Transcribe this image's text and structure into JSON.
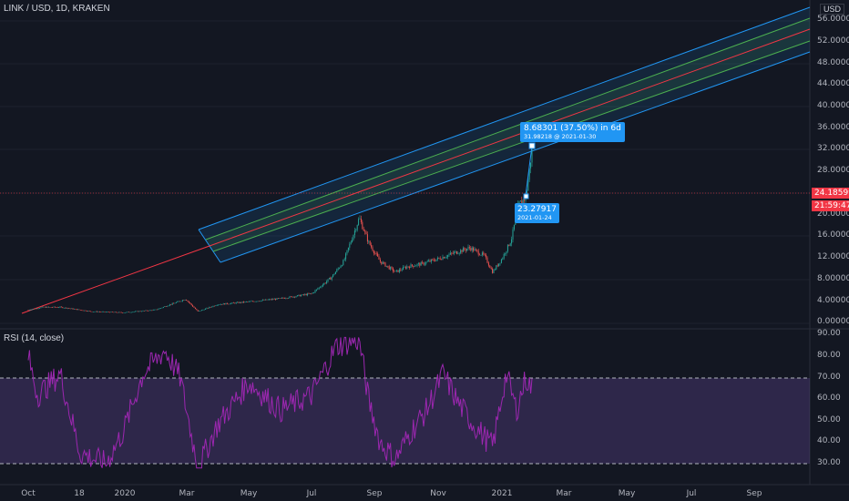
{
  "symbol": "LINK / USD, 1D, KRAKEN",
  "currency": "USD",
  "rsi_label": "RSI (14, close)",
  "colors": {
    "background": "#131722",
    "candle_up": "#26a69a",
    "candle_down": "#ef5350",
    "rsi_line": "#9c27b0",
    "rsi_band": "#7e57c2",
    "channel_outer": "#2196f3",
    "channel_inner": "#4caf50",
    "channel_mid": "#f23645",
    "tooltip": "#2196f3",
    "price_tag": "#f23645"
  },
  "price_axis": [
    "56.00000",
    "52.00000",
    "48.00000",
    "44.00000",
    "40.00000",
    "36.00000",
    "32.00000",
    "28.00000",
    "20.00000",
    "16.00000",
    "12.00000",
    "8.00000",
    "4.00000",
    "0.00000"
  ],
  "rsi_axis": [
    "90.00",
    "80.00",
    "70.00",
    "60.00",
    "50.00",
    "40.00",
    "30.00"
  ],
  "time_axis": [
    "Oct",
    "18",
    "2020",
    "Mar",
    "May",
    "Jul",
    "Sep",
    "Nov",
    "2021",
    "Mar",
    "May",
    "Jul",
    "Sep"
  ],
  "last_price": "24.18599",
  "countdown": "21:59:47",
  "measure_top": {
    "line1": "8.68301 (37.50%) in 6d",
    "line2": "31.98218 @ 2021-01-30"
  },
  "measure_bottom": {
    "line1": "23.27917",
    "line2": "2021-01-24"
  },
  "chart_data": [
    {
      "type": "candlestick",
      "title": "LINK / USD, 1D, KRAKEN",
      "ylabel": "USD",
      "ylim": [
        0,
        56
      ],
      "x": [
        "2019-10-01",
        "2019-10-15",
        "2019-11-01",
        "2019-12-01",
        "2020-01-01",
        "2020-02-01",
        "2020-03-01",
        "2020-03-13",
        "2020-04-01",
        "2020-05-01",
        "2020-06-01",
        "2020-07-01",
        "2020-07-20",
        "2020-08-01",
        "2020-08-16",
        "2020-08-25",
        "2020-09-05",
        "2020-09-20",
        "2020-10-01",
        "2020-10-15",
        "2020-11-01",
        "2020-11-15",
        "2020-12-01",
        "2020-12-15",
        "2020-12-23",
        "2021-01-01",
        "2021-01-10",
        "2021-01-17",
        "2021-01-24",
        "2021-01-30"
      ],
      "close": [
        2.5,
        3.0,
        3.0,
        2.2,
        2.0,
        2.5,
        4.5,
        2.2,
        3.5,
        4.0,
        4.6,
        5.5,
        8.5,
        11.5,
        19.5,
        15.0,
        11.5,
        9.5,
        10.5,
        11.0,
        12.0,
        13.0,
        14.0,
        12.5,
        9.5,
        12.0,
        15.5,
        22.0,
        23.3,
        32.0
      ]
    },
    {
      "type": "line",
      "title": "RSI (14, close)",
      "ylim": [
        27,
        92
      ],
      "x": [
        "2019-10-01",
        "2019-10-10",
        "2019-11-01",
        "2019-11-20",
        "2019-12-15",
        "2020-01-01",
        "2020-01-20",
        "2020-02-10",
        "2020-02-25",
        "2020-03-13",
        "2020-04-01",
        "2020-05-01",
        "2020-06-01",
        "2020-07-01",
        "2020-07-25",
        "2020-08-16",
        "2020-08-25",
        "2020-09-05",
        "2020-09-20",
        "2020-10-05",
        "2020-10-20",
        "2020-11-05",
        "2020-11-20",
        "2020-12-05",
        "2020-12-23",
        "2021-01-05",
        "2021-01-15",
        "2021-01-24",
        "2021-01-30"
      ],
      "values": [
        80,
        62,
        72,
        35,
        30,
        45,
        72,
        83,
        70,
        28,
        48,
        68,
        55,
        62,
        85,
        88,
        60,
        40,
        32,
        45,
        55,
        72,
        58,
        48,
        38,
        72,
        55,
        70,
        65
      ]
    }
  ]
}
